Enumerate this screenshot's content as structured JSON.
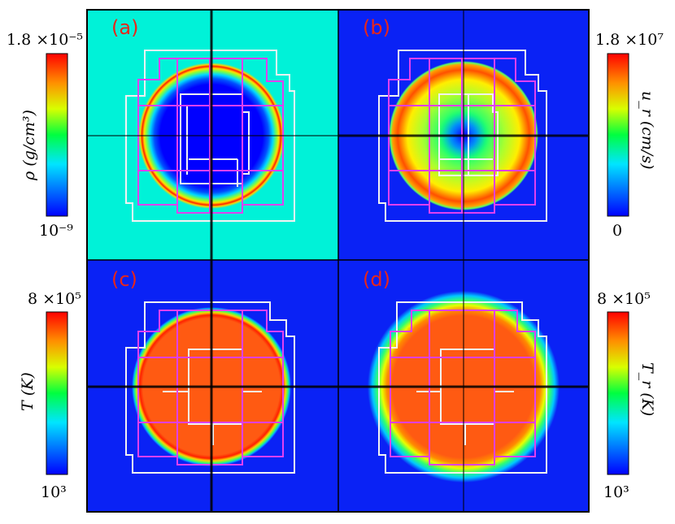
{
  "panels": [
    {
      "label": "(a)",
      "quantity": "density"
    },
    {
      "label": "(b)",
      "quantity": "radial velocity"
    },
    {
      "label": "(c)",
      "quantity": "gas temperature"
    },
    {
      "label": "(d)",
      "quantity": "radiation temperature"
    }
  ],
  "colorbars": [
    {
      "label": "ρ (g/cm³)",
      "max_text": "1.8 ×10⁻⁵",
      "min_text": "10⁻⁹"
    },
    {
      "label": "u_r (cm/s)",
      "max_text": "1.8 ×10⁷",
      "min_text": "0"
    },
    {
      "label": "T (K)",
      "max_text": "8 ×10⁵",
      "min_text": "10³"
    },
    {
      "label": "T_r (K)",
      "max_text": "8 ×10⁵",
      "min_text": "10³"
    }
  ],
  "colors": {
    "background_cyan": "#00f2d8",
    "background_blue": "#0a22f5",
    "hot_orange": "#ff5a12",
    "amr_white": "#f2f2f2",
    "amr_magenta": "#e040f0",
    "axis_black": "#000000"
  }
}
